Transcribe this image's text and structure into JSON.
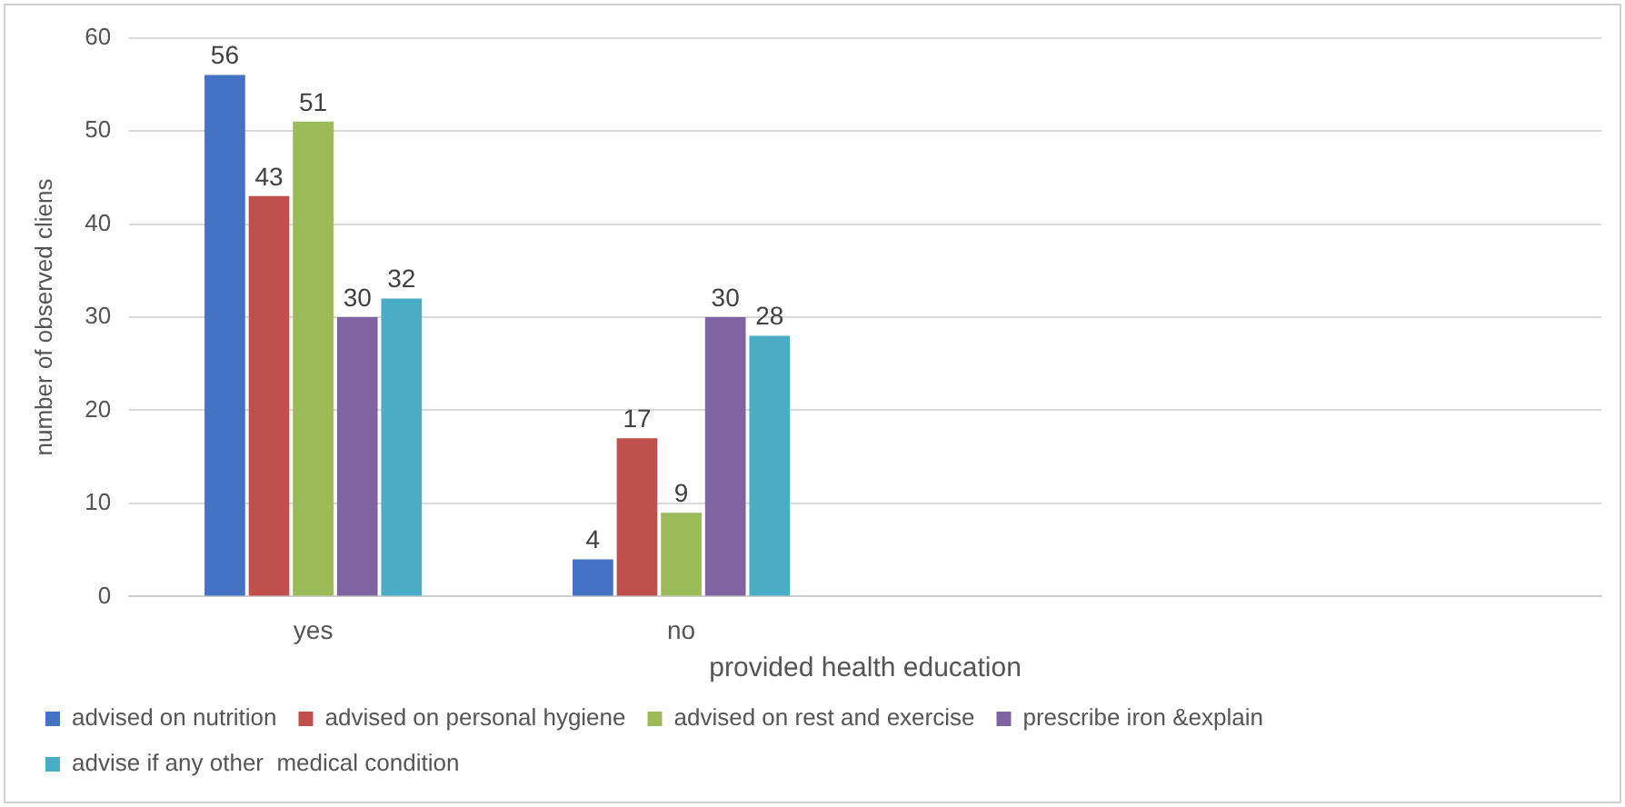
{
  "chart_data": {
    "type": "bar",
    "xlabel": "provided health education",
    "ylabel": "number of observed cliens",
    "categories": [
      "yes",
      "no",
      null,
      null
    ],
    "series": [
      {
        "name": "advised on nutrition",
        "color": "#4472c4",
        "values": [
          56,
          4,
          null,
          null
        ]
      },
      {
        "name": "advised on personal hygiene",
        "color": "#c0504d",
        "values": [
          43,
          17,
          null,
          null
        ]
      },
      {
        "name": "advised on rest and exercise",
        "color": "#9bbb59",
        "values": [
          51,
          9,
          null,
          null
        ]
      },
      {
        "name": "prescribe iron &explain",
        "color": "#8064a2",
        "values": [
          30,
          30,
          null,
          null
        ]
      },
      {
        "name": "advise if any other  medical condition",
        "color": "#4bacc6",
        "values": [
          32,
          28,
          null,
          null
        ]
      }
    ],
    "ylim": [
      0,
      60
    ],
    "yticks": [
      0,
      10,
      20,
      30,
      40,
      50,
      60
    ],
    "grid": "y",
    "legend": "bottom",
    "data_labels": true
  }
}
